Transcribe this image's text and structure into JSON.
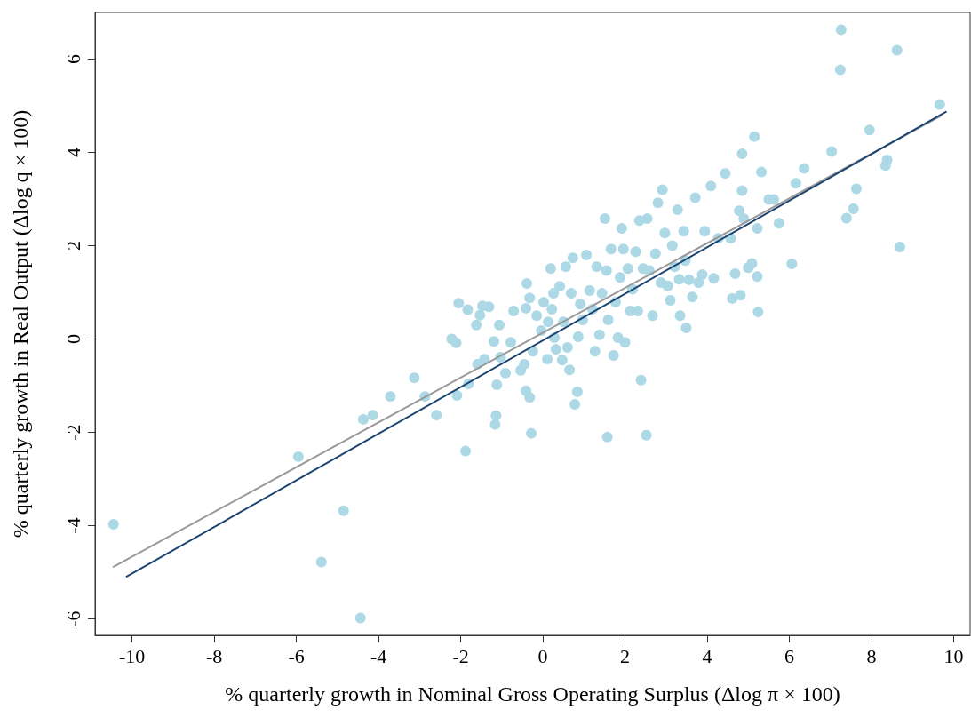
{
  "chart_data": {
    "type": "scatter",
    "xlabel": "% quarterly growth in Nominal Gross Operating Surplus (Δlog π × 100)",
    "ylabel": "% quarterly growth in Real Output (Δlog q × 100)",
    "xlim": [
      -10.9,
      10.4
    ],
    "ylim": [
      -6.35,
      7
    ],
    "xticks": [
      -10,
      -8,
      -6,
      -4,
      -2,
      0,
      2,
      4,
      6,
      8,
      10
    ],
    "yticks": [
      -6,
      -4,
      -2,
      0,
      2,
      4,
      6
    ],
    "grid": false,
    "series": [
      {
        "marker": "circle",
        "color": "#add8e6",
        "x": [
          -10.45,
          -5.95,
          -4.85,
          -5.39,
          -4.44,
          -4.37,
          -4.14,
          -3.71,
          -3.13,
          -2.87,
          -2.59,
          -2.22,
          -2.11,
          -2.05,
          -2.09,
          -1.88,
          -1.81,
          -1.83,
          -1.62,
          -1.53,
          -1.47,
          -1.31,
          -1.59,
          -1.42,
          -1.19,
          -1.06,
          -1.16,
          -1.14,
          -1.12,
          -1.03,
          -0.91,
          -0.78,
          -0.71,
          -0.54,
          -0.45,
          -0.41,
          -0.39,
          -0.41,
          -0.32,
          -0.28,
          -0.32,
          -0.24,
          -0.15,
          -0.04,
          0.02,
          0.11,
          0.13,
          0.19,
          0.22,
          0.26,
          0.28,
          0.32,
          0.41,
          0.47,
          0.5,
          0.56,
          0.6,
          0.65,
          0.69,
          0.73,
          0.78,
          0.84,
          0.86,
          0.91,
          0.97,
          1.06,
          1.14,
          1.21,
          1.27,
          1.31,
          1.38,
          1.44,
          1.51,
          1.55,
          1.57,
          1.59,
          1.66,
          1.72,
          1.77,
          1.83,
          1.88,
          1.92,
          1.96,
          2.0,
          2.07,
          2.13,
          2.18,
          2.26,
          2.31,
          2.35,
          2.39,
          2.44,
          2.52,
          2.54,
          2.59,
          2.67,
          2.74,
          2.8,
          2.87,
          2.91,
          2.97,
          3.04,
          3.1,
          3.15,
          3.21,
          3.28,
          3.32,
          3.34,
          3.43,
          3.47,
          3.49,
          3.56,
          3.64,
          3.71,
          3.79,
          3.88,
          3.94,
          4.09,
          4.16,
          4.27,
          4.44,
          4.57,
          4.61,
          4.68,
          4.78,
          4.81,
          4.85,
          4.85,
          4.89,
          5.0,
          5.09,
          5.15,
          5.22,
          5.24,
          5.22,
          5.32,
          5.5,
          5.62,
          5.75,
          6.06,
          6.16,
          6.36,
          7.03,
          7.24,
          7.26,
          7.39,
          7.56,
          7.63,
          7.95,
          8.34,
          8.38,
          8.62,
          8.69,
          9.66
        ],
        "values": [
          -3.97,
          -2.52,
          -3.68,
          -4.78,
          -5.98,
          -1.72,
          -1.63,
          -1.23,
          -0.83,
          -1.23,
          -1.63,
          0.0,
          -0.08,
          0.77,
          -1.21,
          -2.4,
          -0.96,
          0.63,
          0.3,
          0.51,
          0.71,
          0.69,
          -0.54,
          -0.43,
          -0.05,
          0.3,
          -1.83,
          -1.64,
          -0.98,
          -0.39,
          -0.73,
          -0.07,
          0.6,
          -0.67,
          -0.54,
          0.66,
          1.19,
          -1.11,
          -1.25,
          -2.02,
          0.88,
          -0.26,
          0.5,
          0.18,
          0.79,
          -0.43,
          0.37,
          1.51,
          0.64,
          0.98,
          0.03,
          -0.22,
          1.13,
          -0.45,
          0.37,
          1.55,
          -0.18,
          -0.66,
          0.98,
          1.74,
          -1.4,
          -1.13,
          0.05,
          0.75,
          0.41,
          1.8,
          1.04,
          0.64,
          -0.26,
          1.55,
          0.09,
          0.98,
          2.58,
          1.47,
          -2.1,
          0.41,
          1.93,
          -0.35,
          0.79,
          0.03,
          1.32,
          2.37,
          1.93,
          -0.07,
          1.51,
          0.6,
          1.07,
          1.87,
          0.6,
          2.54,
          -0.88,
          1.51,
          -2.06,
          2.58,
          1.47,
          0.5,
          1.83,
          2.92,
          1.21,
          3.2,
          2.27,
          1.14,
          0.83,
          2.0,
          1.55,
          2.77,
          1.28,
          0.5,
          2.31,
          1.68,
          0.24,
          1.27,
          0.9,
          3.03,
          1.21,
          1.38,
          2.31,
          3.28,
          1.3,
          2.16,
          3.55,
          2.16,
          0.87,
          1.4,
          2.75,
          0.94,
          3.18,
          3.97,
          2.58,
          1.53,
          1.62,
          4.34,
          2.37,
          0.58,
          1.34,
          3.58,
          2.99,
          2.99,
          2.48,
          1.61,
          3.34,
          3.66,
          4.02,
          5.77,
          6.63,
          2.59,
          2.79,
          3.22,
          4.48,
          3.72,
          3.84,
          6.19,
          1.97,
          5.03
        ]
      },
      {
        "type": "line",
        "color": "#999999",
        "x": [
          -10.45,
          9.68
        ],
        "values": [
          -4.88,
          4.78
        ]
      },
      {
        "type": "line",
        "color": "#1b4570",
        "x": [
          -10.13,
          9.81
        ],
        "values": [
          -5.09,
          4.87
        ]
      }
    ]
  }
}
